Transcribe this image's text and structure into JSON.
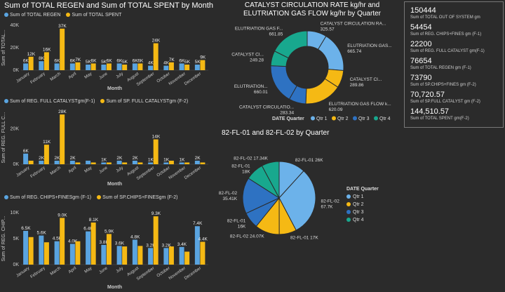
{
  "colors": {
    "blue": "#5aa4e0",
    "yellow": "#f5b914",
    "q1": "#6cb2ea",
    "q2": "#f5b914",
    "q3": "#2e72c2",
    "q4": "#18a88e"
  },
  "months": [
    "January",
    "February",
    "March",
    "April",
    "May",
    "June",
    "July",
    "August",
    "September",
    "October",
    "November",
    "December"
  ],
  "chart_data": [
    {
      "id": "c1",
      "type": "bar",
      "title": "Sum of TOTAL REGEN and Sum of TOTAL SPENT by Month",
      "xlabel": "Month",
      "ylabel": "Sum of TOTAL...",
      "ylim": [
        0,
        40000
      ],
      "ticks": [
        "0K",
        "20K",
        "40K"
      ],
      "tickvals": [
        0,
        20000,
        40000
      ],
      "series": [
        {
          "name": "Sum of TOTAL REGEN",
          "values": [
            6000,
            8000,
            6000,
            6000,
            5000,
            5000,
            6000,
            6000,
            4000,
            4000,
            6000,
            5000
          ],
          "labels": [
            "6K",
            "8K",
            "6K",
            "6K",
            "5K",
            "5K",
            "6K",
            "6K",
            "4K",
            "4K",
            "6K",
            "5K"
          ]
        },
        {
          "name": "Sum of TOTAL SPENT",
          "values": [
            12000,
            16000,
            37000,
            7000,
            6000,
            6000,
            5000,
            6000,
            24000,
            7000,
            5000,
            9000
          ],
          "labels": [
            "12K",
            "16K",
            "37K",
            "7K",
            "6K",
            "6K",
            "5K",
            "6K",
            "24K",
            "7K",
            "5K",
            "9K"
          ]
        }
      ]
    },
    {
      "id": "c2",
      "type": "bar",
      "title": "",
      "xlabel": "Month",
      "ylabel": "Sum of REG. FULL C...",
      "ylim": [
        0,
        30000
      ],
      "ticks": [
        "0K",
        "20K"
      ],
      "tickvals": [
        0,
        20000
      ],
      "series": [
        {
          "name": "Sum of REG. FULL CATALYSTgm(F-1)",
          "values": [
            6000,
            2000,
            2000,
            2000,
            2000,
            1000,
            2000,
            2000,
            1000,
            1000,
            1000,
            2000
          ],
          "labels": [
            "6K",
            "2K",
            "2K",
            "2K",
            "",
            "1K",
            "2K",
            "2K",
            "1K",
            "1K",
            "1K",
            "2K"
          ]
        },
        {
          "name": "Sum of SP. FULL CATALYSTgm (F-2)",
          "values": [
            2000,
            11000,
            28000,
            1000,
            1000,
            1000,
            1000,
            1000,
            14000,
            2000,
            1000,
            1000
          ],
          "labels": [
            "",
            "11K",
            "28K",
            "",
            "",
            "",
            "",
            "",
            "14K",
            "",
            "",
            ""
          ]
        }
      ]
    },
    {
      "id": "c3",
      "type": "bar",
      "title": "",
      "xlabel": "Month",
      "ylabel": "Sum of REG. CHIP...",
      "ylim": [
        0,
        10000
      ],
      "ticks": [
        "0K",
        "5K",
        "10K"
      ],
      "tickvals": [
        0,
        5000,
        10000
      ],
      "series": [
        {
          "name": "Sum of REG. CHIPS+FINESgm (F-1)",
          "values": [
            6500,
            5600,
            4500,
            4000,
            6400,
            3800,
            3600,
            4800,
            3200,
            3200,
            3400,
            7400
          ],
          "labels": [
            "6.5K",
            "5.6K",
            "4.5K",
            "4.0K",
            "6.4K",
            "3.8K",
            "3.6K",
            "4.8K",
            "3.2K",
            "3.2K",
            "3.4K",
            "7.4K"
          ]
        },
        {
          "name": "Sum of SP.CHIPS+FINESgm (F-2)",
          "values": [
            5300,
            4300,
            9000,
            4500,
            8100,
            5900,
            3500,
            3600,
            9300,
            3500,
            2500,
            4400
          ],
          "labels": [
            "",
            "",
            "9.0K",
            "",
            "8.1K",
            "5.9K",
            "",
            "",
            "9.3K",
            "",
            "",
            "4.4K"
          ]
        }
      ]
    },
    {
      "id": "donut",
      "type": "pie",
      "title": "CATALYST CIRCULATION RATE kg/hr and ELUTRIATION GAS FLOW kg/hr by Quarter",
      "legend_title": "DATE Quarter",
      "legend": [
        "Qtr 1",
        "Qtr 2",
        "Qtr 3",
        "Qtr 4"
      ],
      "rings": [
        {
          "name": "CATALYST CIRCULATION RATE",
          "values": [
            325.57,
            289.86,
            283.34,
            249.28
          ]
        },
        {
          "name": "ELUTRIATION GAS FLOW",
          "values": [
            665.74,
            620.09,
            660.01,
            661.85
          ]
        }
      ],
      "labels": [
        "CATALYST CIRCULATION RA... 325.57",
        "ELUTRIATION GAS... 665.74",
        "CATALYST CI... 289.86",
        "ELUTRIATION GAS FLOW k... 620.09",
        "CATALYST CIRCULATIO... 283.34",
        "ELUTRIATION... 660.01",
        "CATALYST CI... 249.28",
        "ELUTRIATION GAS F... 661.85"
      ]
    },
    {
      "id": "pie",
      "type": "pie",
      "title": "82-FL-01 and 82-FL-02 by Quarter",
      "legend_title": "DATE Quarter",
      "legend": [
        "Qtr 1",
        "Qtr 2",
        "Qtr 3",
        "Qtr 4"
      ],
      "values": [
        26000,
        67700,
        17000,
        24070,
        16000,
        35410,
        18000,
        17340
      ],
      "colors_idx": [
        0,
        0,
        1,
        1,
        2,
        2,
        3,
        3
      ],
      "labels": [
        "82-FL-01 26K",
        "82-FL-02 67.7K",
        "82-FL-01 17K",
        "82-FL-02 24.07K",
        "82-FL-01 16K",
        "82-FL-02 35.41K",
        "82-FL-01 18K",
        "82-FL-02 17.34K"
      ]
    }
  ],
  "kpis": [
    {
      "value": "150444",
      "label": "Sum of TOTAL OUT OF SYSTEM gm"
    },
    {
      "value": "54454",
      "label": "Sum of REG. CHIPS+FINES gm (F-1)"
    },
    {
      "value": "22200",
      "label": "Sum of REG. FULL CATALYST gm(F-1)"
    },
    {
      "value": "76654",
      "label": "Sum of TOTAL REGEN gm (F-1)"
    },
    {
      "value": "73790",
      "label": "Sum of SP.CHIPS+FINES gm (F-2)"
    },
    {
      "value": "70,720.57",
      "label": "Sum of SP.FULL CATALYST gm (F-2)"
    },
    {
      "value": "144,510.57",
      "label": "Sum of TOTAL SPENT gm(F-2)"
    }
  ]
}
